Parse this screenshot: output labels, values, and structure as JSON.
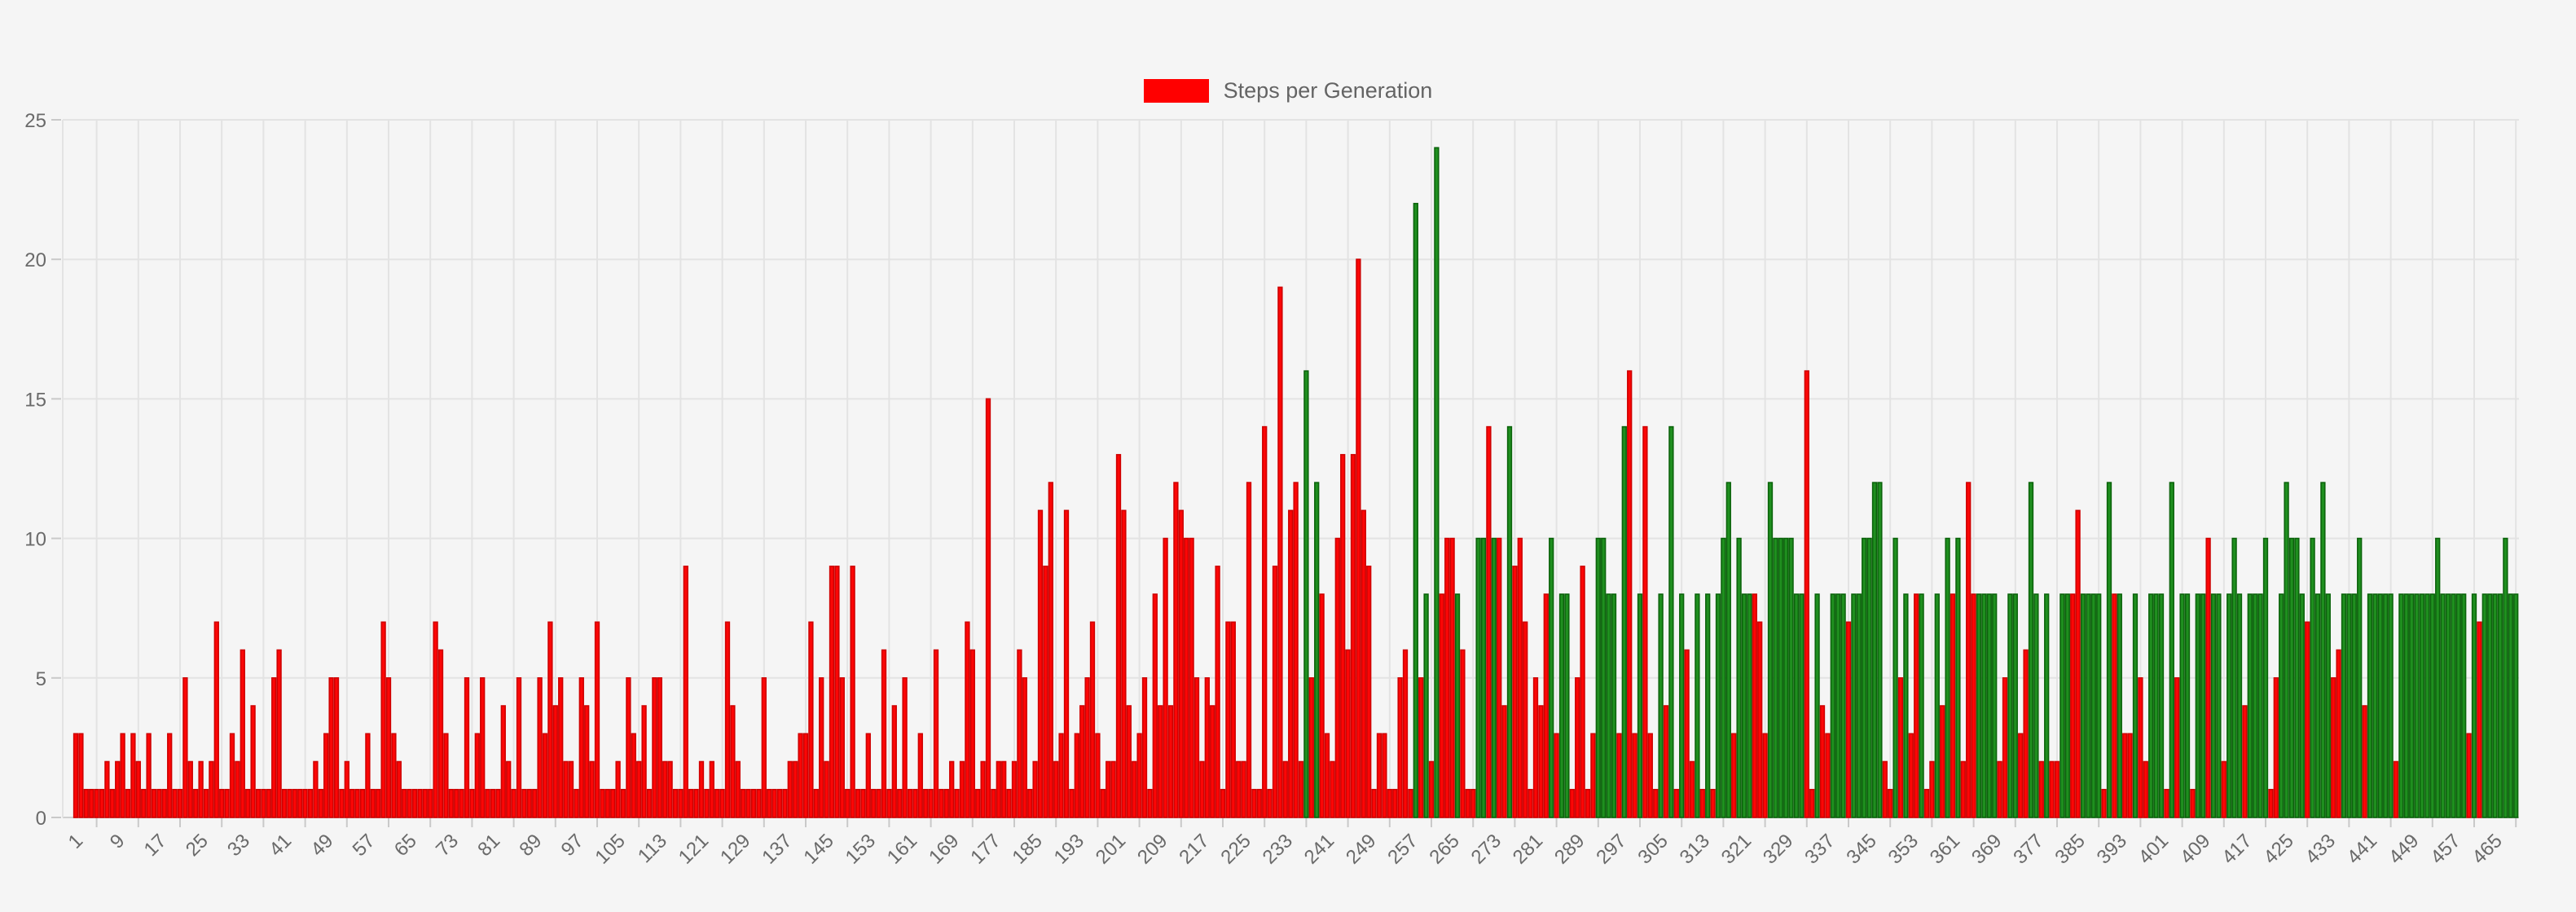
{
  "page": {
    "background": "#f5f5f5"
  },
  "legend": {
    "label": "Steps per Generation",
    "swatch_color": "#ff0000"
  },
  "axes": {
    "y_ticks": [
      "0",
      "5",
      "10",
      "15",
      "20",
      "25"
    ],
    "x_tick_labels": [
      "1",
      "9",
      "17",
      "25",
      "33",
      "41",
      "49",
      "57",
      "65",
      "73",
      "81",
      "89",
      "97",
      "105",
      "113",
      "121",
      "129",
      "137",
      "145",
      "153",
      "161",
      "169",
      "177",
      "185",
      "193",
      "201",
      "209",
      "217",
      "225",
      "233",
      "241",
      "249",
      "257",
      "265",
      "273",
      "281",
      "289",
      "297",
      "305",
      "313",
      "321",
      "329",
      "337",
      "345",
      "353",
      "361",
      "369",
      "377",
      "385",
      "393",
      "401",
      "409",
      "417",
      "425",
      "433",
      "441",
      "449",
      "457",
      "465"
    ]
  },
  "chart_data": {
    "type": "bar",
    "title": "Steps per Generation",
    "xlabel": "",
    "ylabel": "",
    "legend_position": "top-center",
    "grid": true,
    "ylim": [
      0,
      25
    ],
    "y_tick_values": [
      0,
      5,
      10,
      15,
      20,
      25
    ],
    "x_start": 1,
    "x_step": 1,
    "n_points": 469,
    "x_tick_start": 1,
    "x_tick_step": 8,
    "bar_colors": {
      "r": {
        "fill": "#fc0606",
        "border": "#cf0000"
      },
      "g": {
        "fill": "#1f8f1f",
        "border": "#0b630b"
      }
    },
    "values": [
      3,
      3,
      1,
      1,
      1,
      1,
      2,
      1,
      2,
      3,
      1,
      3,
      2,
      1,
      3,
      1,
      1,
      1,
      3,
      1,
      1,
      5,
      2,
      1,
      2,
      1,
      2,
      7,
      1,
      1,
      3,
      2,
      6,
      1,
      4,
      1,
      1,
      1,
      5,
      6,
      1,
      1,
      1,
      1,
      1,
      1,
      2,
      1,
      3,
      5,
      5,
      1,
      2,
      1,
      1,
      1,
      3,
      1,
      1,
      7,
      5,
      3,
      2,
      1,
      1,
      1,
      1,
      1,
      1,
      7,
      6,
      3,
      1,
      1,
      1,
      5,
      1,
      3,
      5,
      1,
      1,
      1,
      4,
      2,
      1,
      5,
      1,
      1,
      1,
      5,
      3,
      7,
      4,
      5,
      2,
      2,
      1,
      5,
      4,
      2,
      7,
      1,
      1,
      1,
      2,
      1,
      5,
      3,
      2,
      4,
      1,
      5,
      5,
      2,
      2,
      1,
      1,
      9,
      1,
      1,
      2,
      1,
      2,
      1,
      1,
      7,
      4,
      2,
      1,
      1,
      1,
      1,
      5,
      1,
      1,
      1,
      1,
      2,
      2,
      3,
      3,
      7,
      1,
      5,
      2,
      9,
      9,
      5,
      1,
      9,
      1,
      1,
      3,
      1,
      1,
      6,
      1,
      4,
      1,
      5,
      1,
      1,
      3,
      1,
      1,
      6,
      1,
      1,
      2,
      1,
      2,
      7,
      6,
      1,
      2,
      15,
      1,
      2,
      2,
      1,
      2,
      6,
      5,
      1,
      2,
      11,
      9,
      12,
      2,
      3,
      11,
      1,
      3,
      4,
      5,
      7,
      3,
      1,
      2,
      2,
      13,
      11,
      4,
      2,
      3,
      5,
      1,
      8,
      4,
      10,
      4,
      12,
      11,
      10,
      10,
      5,
      2,
      5,
      4,
      9,
      1,
      7,
      7,
      2,
      2,
      12,
      1,
      1,
      14,
      1,
      9,
      19,
      2,
      11,
      12,
      2,
      16,
      5,
      12,
      8,
      3,
      2,
      10,
      13,
      6,
      13,
      20,
      11,
      9,
      1,
      3,
      3,
      1,
      1,
      5,
      6,
      1,
      22,
      5,
      8,
      2,
      24,
      8,
      10,
      10,
      8,
      6,
      1,
      1,
      10,
      10,
      14,
      10,
      10,
      4,
      14,
      9,
      10,
      7,
      1,
      5,
      4,
      8,
      10,
      3,
      8,
      8,
      1,
      5,
      9,
      1,
      3,
      10,
      10,
      8,
      8,
      3,
      14,
      16,
      3,
      8,
      14,
      3,
      1,
      8,
      4,
      14,
      1,
      8,
      6,
      2,
      8,
      1,
      8,
      1,
      8,
      10,
      12,
      3,
      10,
      8,
      8,
      8,
      7,
      3,
      12,
      10,
      10,
      10,
      10,
      8,
      8,
      16,
      1,
      8,
      4,
      3,
      8,
      8,
      8,
      7,
      8,
      8,
      10,
      10,
      12,
      12,
      2,
      1,
      10,
      5,
      8,
      3,
      8,
      8,
      1,
      2,
      8,
      4,
      10,
      8,
      10,
      2,
      12,
      8,
      8,
      8,
      8,
      8,
      2,
      5,
      8,
      8,
      3,
      6,
      12,
      8,
      2,
      8,
      2,
      2,
      8,
      8,
      8,
      11,
      8,
      8,
      8,
      8,
      1,
      12,
      8,
      8,
      3,
      3,
      8,
      5,
      2,
      8,
      8,
      8,
      1,
      12,
      5,
      8,
      8,
      1,
      8,
      8,
      10,
      8,
      8,
      2,
      8,
      10,
      8,
      4,
      8,
      8,
      8,
      10,
      1,
      5,
      8,
      12,
      10,
      10,
      8,
      7,
      10,
      8,
      12,
      8,
      5,
      6,
      8,
      8,
      8,
      10,
      4,
      8,
      8,
      8,
      8,
      8,
      2,
      8,
      8,
      8,
      8,
      8,
      8,
      8,
      10,
      8,
      8,
      8,
      8,
      8,
      3,
      8,
      7,
      8,
      8,
      8,
      8,
      10,
      8,
      8
    ],
    "colors": "rrrrrrrrrrrrrrrrrrrrrrrrrrrrrrrrrrrrrrrrrrrrrrrrrrrrrrrrrrrrrrrrrrrrrrrrrrrrrrrrrrrrrrrrrrrrrrrrrrrrrrrrrrrrrrrrrrrrrrrrrrrrrrrrrrrrrrrrrrrrrrrrrrrrrrrrrrrrrrrrrrrrrrrrrrrrrrrrrrrrrrrrrrrrrrrrrrrrrrrrrrrrrrrrrrrrrrrrrrrrrrrrrrrrrrrrrrrrgrgrrrrrrrrrrrrrrrrrrgrgrgrrrgrrrggrgrrgrrrrrrrgrggrrrrrggggrgrrgrrrgrgrgrrgrgrgggrgggrrrgggggggrrgrrgggrggggggrrgrgrrgrrgrgrgrrrggggrrggrrggrgrrggrrggggrgrgrrgrrgggrgrggrggrggrgggrggggrrgggggrggggrrggggrgggggrgggggggggggggrgrggggggg"
  }
}
